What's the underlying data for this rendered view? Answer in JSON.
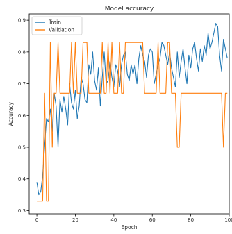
{
  "chart_data": {
    "type": "line",
    "title": "Model accuracy",
    "xlabel": "Epoch",
    "ylabel": "Accuracy",
    "xlim": [
      -4,
      100
    ],
    "ylim": [
      0.29,
      0.92
    ],
    "xticks": [
      0,
      20,
      40,
      60,
      80,
      100
    ],
    "xtick_labels": [
      "0",
      "20",
      "40",
      "60",
      "80",
      "100"
    ],
    "yticks": [
      0.3,
      0.4,
      0.5,
      0.6,
      0.7,
      0.8,
      0.9
    ],
    "ytick_labels": [
      "0.3",
      "0.4",
      "0.5",
      "0.6",
      "0.7",
      "0.8",
      "0.9"
    ],
    "legend": {
      "position": "top-left"
    },
    "grid": false,
    "series": [
      {
        "name": "Train",
        "color": "#1f77b4",
        "x": [
          0,
          1,
          2,
          3,
          4,
          5,
          6,
          7,
          8,
          9,
          10,
          11,
          12,
          13,
          14,
          15,
          16,
          17,
          18,
          19,
          20,
          21,
          22,
          23,
          24,
          25,
          26,
          27,
          28,
          29,
          30,
          31,
          32,
          33,
          34,
          35,
          36,
          37,
          38,
          39,
          40,
          41,
          42,
          43,
          44,
          45,
          46,
          47,
          48,
          49,
          50,
          51,
          52,
          53,
          54,
          55,
          56,
          57,
          58,
          59,
          60,
          61,
          62,
          63,
          64,
          65,
          66,
          67,
          68,
          69,
          70,
          71,
          72,
          73,
          74,
          75,
          76,
          77,
          78,
          79,
          80,
          81,
          82,
          83,
          84,
          85,
          86,
          87,
          88,
          89,
          90,
          91,
          92,
          93,
          94,
          95,
          96,
          97,
          98,
          99
        ],
        "values": [
          0.39,
          0.35,
          0.36,
          0.41,
          0.5,
          0.59,
          0.58,
          0.62,
          0.55,
          0.67,
          0.63,
          0.5,
          0.65,
          0.61,
          0.66,
          0.62,
          0.57,
          0.7,
          0.64,
          0.62,
          0.68,
          0.59,
          0.63,
          0.72,
          0.7,
          0.65,
          0.64,
          0.76,
          0.73,
          0.8,
          0.71,
          0.68,
          0.75,
          0.63,
          0.72,
          0.8,
          0.7,
          0.71,
          0.77,
          0.72,
          0.69,
          0.76,
          0.74,
          0.69,
          0.76,
          0.79,
          0.8,
          0.73,
          0.71,
          0.76,
          0.73,
          0.76,
          0.7,
          0.78,
          0.82,
          0.79,
          0.77,
          0.72,
          0.79,
          0.81,
          0.8,
          0.7,
          0.73,
          0.76,
          0.78,
          0.83,
          0.82,
          0.79,
          0.76,
          0.8,
          0.75,
          0.72,
          0.69,
          0.8,
          0.72,
          0.77,
          0.81,
          0.75,
          0.7,
          0.79,
          0.75,
          0.81,
          0.83,
          0.78,
          0.74,
          0.81,
          0.77,
          0.82,
          0.79,
          0.86,
          0.81,
          0.83,
          0.86,
          0.89,
          0.88,
          0.79,
          0.74,
          0.84,
          0.81,
          0.78
        ]
      },
      {
        "name": "Validation",
        "color": "#ff7f0e",
        "x": [
          0,
          1,
          2,
          3,
          4,
          5,
          6,
          7,
          8,
          9,
          10,
          11,
          12,
          13,
          14,
          15,
          16,
          17,
          18,
          19,
          20,
          21,
          22,
          23,
          24,
          25,
          26,
          27,
          28,
          29,
          30,
          31,
          32,
          33,
          34,
          35,
          36,
          37,
          38,
          39,
          40,
          41,
          42,
          43,
          44,
          45,
          46,
          47,
          48,
          49,
          50,
          51,
          52,
          53,
          54,
          55,
          56,
          57,
          58,
          59,
          60,
          61,
          62,
          63,
          64,
          65,
          66,
          67,
          68,
          69,
          70,
          71,
          72,
          73,
          74,
          75,
          76,
          77,
          78,
          79,
          80,
          81,
          82,
          83,
          84,
          85,
          86,
          87,
          88,
          89,
          90,
          91,
          92,
          93,
          94,
          95,
          96,
          97,
          98,
          99
        ],
        "values": [
          0.33,
          0.33,
          0.33,
          0.33,
          0.67,
          0.33,
          0.33,
          0.83,
          0.5,
          0.67,
          0.67,
          0.83,
          0.67,
          0.67,
          0.67,
          0.67,
          0.67,
          0.67,
          0.83,
          0.67,
          0.83,
          0.67,
          0.67,
          0.67,
          0.83,
          0.83,
          0.83,
          0.67,
          0.67,
          0.67,
          0.67,
          0.67,
          0.67,
          0.67,
          0.83,
          0.67,
          0.67,
          0.83,
          0.67,
          0.83,
          0.67,
          0.67,
          0.67,
          0.83,
          0.67,
          0.67,
          0.83,
          0.83,
          0.83,
          0.83,
          0.83,
          0.83,
          0.83,
          0.83,
          0.83,
          0.83,
          0.67,
          0.67,
          0.67,
          0.67,
          0.67,
          0.67,
          0.67,
          0.83,
          0.67,
          0.67,
          0.67,
          0.67,
          0.83,
          0.83,
          0.67,
          0.67,
          0.67,
          0.5,
          0.5,
          0.67,
          0.67,
          0.67,
          0.67,
          0.67,
          0.67,
          0.67,
          0.67,
          0.67,
          0.67,
          0.67,
          0.67,
          0.67,
          0.67,
          0.67,
          0.67,
          0.67,
          0.67,
          0.67,
          0.67,
          0.67,
          0.67,
          0.5,
          0.67,
          0.67
        ]
      }
    ]
  }
}
